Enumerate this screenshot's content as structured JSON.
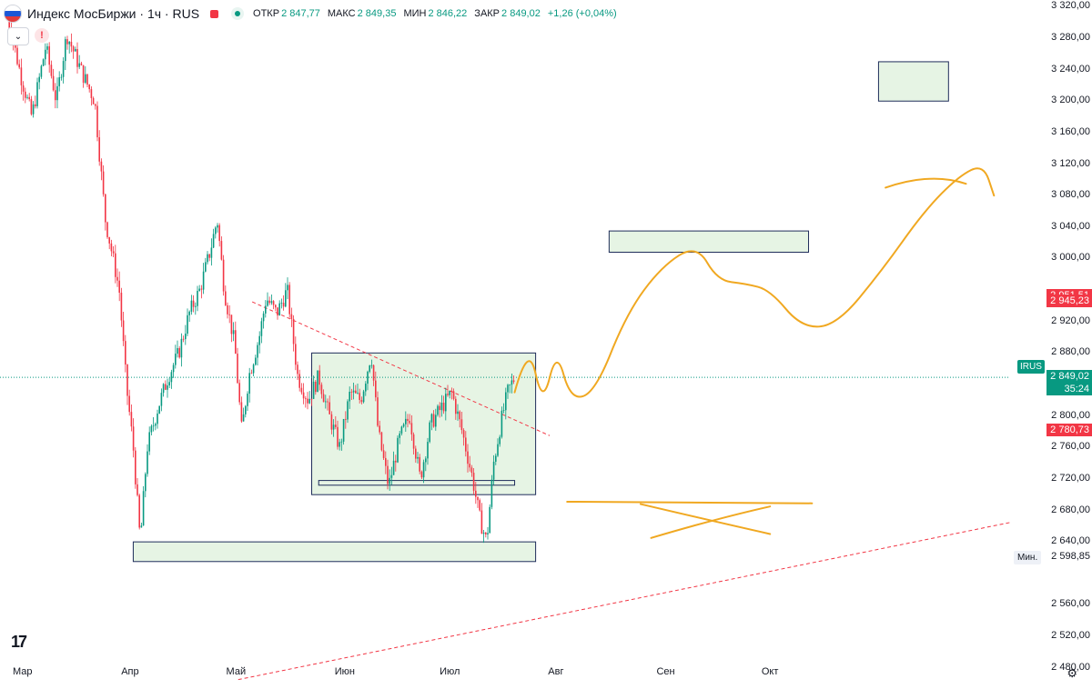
{
  "header": {
    "symbol": "Индекс МосБиржи · 1ч · RUS",
    "open_label": "ОТКР",
    "open_value": "2 847,77",
    "high_label": "МАКС",
    "high_value": "2 849,35",
    "low_label": "МИН",
    "low_value": "2 846,22",
    "close_label": "ЗАКР",
    "close_value": "2 849,02",
    "change": "+1,26 (+0,04%)",
    "colors": {
      "up": "#089981",
      "down": "#f23645",
      "flag_white": "#ffffff",
      "flag_blue": "#1c57d6",
      "flag_red": "#e23b3b"
    }
  },
  "toolbar": {
    "collapse_icon": "chevron-down-icon",
    "alert_icon": "exclamation-icon",
    "collapse_glyph": "⌄",
    "alert_glyph": "!"
  },
  "chart_data": {
    "type": "candlestick",
    "ylim": [
      2460,
      3340
    ],
    "y_ticks": [
      "3 320,00",
      "3 280,00",
      "3 240,00",
      "3 200,00",
      "3 160,00",
      "3 120,00",
      "3 080,00",
      "3 040,00",
      "3 000,00",
      "2 920,00",
      "2 880,00",
      "2 800,00",
      "2 760,00",
      "2 720,00",
      "2 680,00",
      "2 640,00",
      "2 560,00",
      "2 520,00",
      "2 480,00"
    ],
    "x_ticks": [
      "Мар",
      "Апр",
      "Май",
      "Июн",
      "Июл",
      "Авг",
      "Сен",
      "Окт"
    ],
    "price_labels": [
      {
        "text": "2 951,51",
        "value": 2951.51,
        "color": "#f23645"
      },
      {
        "text": "2 945,23",
        "value": 2945.23,
        "color": "#f23645"
      },
      {
        "text": "2 849,02",
        "value": 2849.02,
        "color": "#089981"
      },
      {
        "text": "35:24",
        "value": 2833,
        "color": "#089981"
      },
      {
        "text": "2 780,73",
        "value": 2780.73,
        "color": "#f23645"
      }
    ],
    "min_label": "Мин.",
    "min_value": "2 598,85",
    "symbol_tag": "IRUS",
    "last_price": 2849.02,
    "price_path": [
      [
        "2025-03-01",
        3310
      ],
      [
        "2025-03-05",
        3230
      ],
      [
        "2025-03-08",
        3180
      ],
      [
        "2025-03-12",
        3270
      ],
      [
        "2025-03-15",
        3200
      ],
      [
        "2025-03-18",
        3285
      ],
      [
        "2025-03-22",
        3240
      ],
      [
        "2025-03-26",
        3200
      ],
      [
        "2025-03-29",
        3050
      ],
      [
        "2025-04-02",
        2960
      ],
      [
        "2025-04-04",
        2840
      ],
      [
        "2025-04-06",
        2760
      ],
      [
        "2025-04-08",
        2640
      ],
      [
        "2025-04-10",
        2760
      ],
      [
        "2025-04-13",
        2810
      ],
      [
        "2025-04-16",
        2850
      ],
      [
        "2025-04-19",
        2880
      ],
      [
        "2025-04-22",
        2930
      ],
      [
        "2025-04-25",
        2960
      ],
      [
        "2025-04-28",
        3010
      ],
      [
        "2025-04-30",
        3050
      ],
      [
        "2025-05-02",
        2960
      ],
      [
        "2025-05-05",
        2890
      ],
      [
        "2025-05-07",
        2780
      ],
      [
        "2025-05-09",
        2850
      ],
      [
        "2025-05-12",
        2900
      ],
      [
        "2025-05-14",
        2950
      ],
      [
        "2025-05-17",
        2930
      ],
      [
        "2025-05-20",
        2960
      ],
      [
        "2025-05-23",
        2850
      ],
      [
        "2025-05-26",
        2820
      ],
      [
        "2025-05-29",
        2850
      ],
      [
        "2025-06-01",
        2800
      ],
      [
        "2025-06-04",
        2760
      ],
      [
        "2025-06-07",
        2830
      ],
      [
        "2025-06-10",
        2820
      ],
      [
        "2025-06-13",
        2880
      ],
      [
        "2025-06-15",
        2780
      ],
      [
        "2025-06-18",
        2710
      ],
      [
        "2025-06-21",
        2770
      ],
      [
        "2025-06-24",
        2800
      ],
      [
        "2025-06-27",
        2720
      ],
      [
        "2025-06-30",
        2790
      ],
      [
        "2025-07-03",
        2810
      ],
      [
        "2025-07-06",
        2830
      ],
      [
        "2025-07-09",
        2780
      ],
      [
        "2025-07-12",
        2720
      ],
      [
        "2025-07-14",
        2670
      ],
      [
        "2025-07-16",
        2640
      ],
      [
        "2025-07-18",
        2740
      ],
      [
        "2025-07-20",
        2790
      ],
      [
        "2025-07-22",
        2830
      ],
      [
        "2025-07-24",
        2849
      ]
    ],
    "zones": [
      {
        "name": "lower-support-zone",
        "x0": "2025-04-06",
        "x1": "2025-07-30",
        "y0": 2615,
        "y1": 2640
      },
      {
        "name": "range-box",
        "x0": "2025-05-27",
        "x1": "2025-07-30",
        "y0": 2700,
        "y1": 2880
      },
      {
        "name": "range-base",
        "x0": "2025-05-29",
        "x1": "2025-07-24",
        "y0": 2712,
        "y1": 2718
      },
      {
        "name": "target-zone-1",
        "x0": "2025-08-20",
        "x1": "2025-10-16",
        "y0": 3008,
        "y1": 3035
      },
      {
        "name": "target-zone-2",
        "x0": "2025-11-05",
        "x1": "2025-11-25",
        "y0": 3200,
        "y1": 3250
      }
    ],
    "trendlines": [
      {
        "name": "descending-trendline",
        "from": [
          "2025-05-10",
          2945
        ],
        "to": [
          "2025-08-03",
          2775
        ],
        "color": "#f23645"
      },
      {
        "name": "ascending-trendline",
        "from": [
          "2025-05-06",
          2465
        ],
        "to": [
          "2025-12-13",
          2665
        ],
        "color": "#f23645"
      }
    ],
    "forecast_path": [
      [
        "2025-07-24",
        2830
      ],
      [
        "2025-07-28",
        2895
      ],
      [
        "2025-08-01",
        2812
      ],
      [
        "2025-08-05",
        2885
      ],
      [
        "2025-08-09",
        2820
      ],
      [
        "2025-08-16",
        2830
      ],
      [
        "2025-08-25",
        2930
      ],
      [
        "2025-09-04",
        2990
      ],
      [
        "2025-09-14",
        3018
      ],
      [
        "2025-09-20",
        2972
      ],
      [
        "2025-09-28",
        2968
      ],
      [
        "2025-10-05",
        2960
      ],
      [
        "2025-10-14",
        2912
      ],
      [
        "2025-10-24",
        2915
      ],
      [
        "2025-11-06",
        2985
      ],
      [
        "2025-11-18",
        3060
      ],
      [
        "2025-11-28",
        3105
      ],
      [
        "2025-12-05",
        3120
      ],
      [
        "2025-12-08",
        3080
      ]
    ],
    "forecast_arrow": [
      [
        "2025-11-07",
        3090
      ],
      [
        "2025-11-20",
        3110
      ],
      [
        "2025-11-30",
        3095
      ]
    ],
    "cross_mark": {
      "hline": [
        [
          "2025-08-08",
          2691
        ],
        [
          "2025-10-17",
          2689
        ]
      ],
      "strokes": [
        [
          [
            "2025-08-29",
            2688
          ],
          [
            "2025-09-20",
            2665
          ],
          [
            "2025-10-05",
            2650
          ]
        ],
        [
          [
            "2025-09-01",
            2645
          ],
          [
            "2025-09-20",
            2670
          ],
          [
            "2025-10-05",
            2685
          ]
        ]
      ]
    },
    "colors": {
      "up": "#089981",
      "down": "#f23645",
      "zone_fill": "#e6f4e4",
      "zone_stroke": "#1e2c5a",
      "forecast": "#f0a821"
    }
  },
  "brand": "17",
  "settings_icon": "gear-icon",
  "settings_glyph": "⚙"
}
